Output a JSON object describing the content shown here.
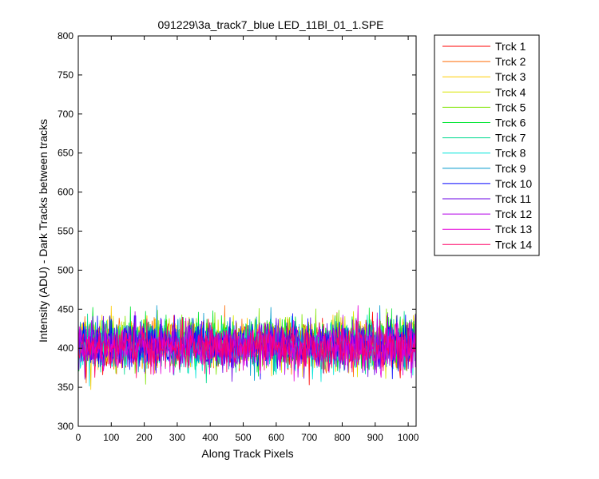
{
  "chart_data": {
    "type": "line",
    "title": "091229\\3a_track7_blue LED_11Bl_01_1.SPE",
    "xlabel": "Along Track Pixels",
    "ylabel": "Intensity (ADU) - Dark Tracks between tracks",
    "xlim": [
      0,
      1024
    ],
    "ylim": [
      300,
      800
    ],
    "xticks": [
      0,
      100,
      200,
      300,
      400,
      500,
      600,
      700,
      800,
      900,
      1000
    ],
    "yticks": [
      300,
      350,
      400,
      450,
      500,
      550,
      600,
      650,
      700,
      750,
      800
    ],
    "grid": false,
    "legend_position": "outside-right",
    "series": [
      {
        "name": "Trck 1",
        "color": "#ff0000",
        "mean": 405,
        "spread": 15
      },
      {
        "name": "Trck 2",
        "color": "#ff6a00",
        "mean": 406,
        "spread": 15
      },
      {
        "name": "Trck 3",
        "color": "#ffcc00",
        "mean": 407,
        "spread": 15
      },
      {
        "name": "Trck 4",
        "color": "#d9e600",
        "mean": 408,
        "spread": 15
      },
      {
        "name": "Trck 5",
        "color": "#7fe600",
        "mean": 410,
        "spread": 15
      },
      {
        "name": "Trck 6",
        "color": "#00e633",
        "mean": 409,
        "spread": 15
      },
      {
        "name": "Trck 7",
        "color": "#00d98f",
        "mean": 405,
        "spread": 15
      },
      {
        "name": "Trck 8",
        "color": "#00e6d9",
        "mean": 402,
        "spread": 15
      },
      {
        "name": "Trck 9",
        "color": "#0099cc",
        "mean": 403,
        "spread": 15
      },
      {
        "name": "Trck 10",
        "color": "#0000ff",
        "mean": 406,
        "spread": 15
      },
      {
        "name": "Trck 11",
        "color": "#6a00e6",
        "mean": 404,
        "spread": 15
      },
      {
        "name": "Trck 12",
        "color": "#b300e6",
        "mean": 401,
        "spread": 14
      },
      {
        "name": "Trck 13",
        "color": "#e600d9",
        "mean": 400,
        "spread": 14
      },
      {
        "name": "Trck 14",
        "color": "#ff0066",
        "mean": 401,
        "spread": 14
      }
    ]
  }
}
